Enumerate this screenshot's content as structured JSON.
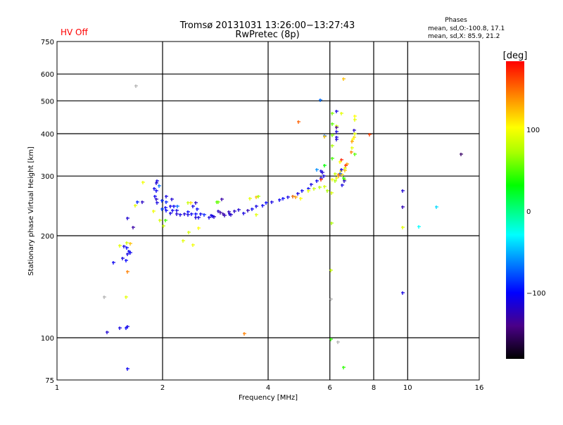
{
  "status": {
    "hv_label": "HV Off",
    "hv_color": "#ff0000"
  },
  "phases_box": {
    "title": "Phases",
    "o_line": "mean, sd,O:-100.8, 17.1",
    "x_line": "mean, sd,X:  85.9, 21.2"
  },
  "chart_data": {
    "type": "scatter",
    "title": "Tromsø 20131031 13:26:00−13:27:43",
    "subtitle": "RwPretec (8p)",
    "xlabel": "Frequency [MHz]",
    "ylabel": "Stationary phase Virtual Height [km]",
    "xscale": "log",
    "yscale": "log",
    "xlim": [
      1,
      16
    ],
    "ylim": [
      75,
      750
    ],
    "xticks": [
      1,
      2,
      4,
      6,
      8,
      10,
      16
    ],
    "xtick_labels": [
      "1",
      "2",
      "4",
      "6",
      "8",
      "10",
      "16"
    ],
    "xgrid": [
      2,
      4,
      6,
      8,
      10
    ],
    "yticks": [
      75,
      100,
      200,
      300,
      400,
      500,
      600,
      750
    ],
    "ytick_labels": [
      "75",
      "100",
      "200",
      "300",
      "400",
      "500",
      "600",
      "750"
    ],
    "ygrid": [
      100,
      200,
      300,
      400,
      500,
      600
    ],
    "grid": true,
    "colorbar": {
      "label": "[deg]",
      "range": [
        -180,
        180
      ],
      "ticks": [
        100,
        0,
        -100
      ],
      "tick_labels": [
        "100",
        "0",
        "−100"
      ],
      "stops": [
        {
          "v": -180,
          "c": "#000000"
        },
        {
          "v": -140,
          "c": "#4a0088"
        },
        {
          "v": -100,
          "c": "#0000ff"
        },
        {
          "v": -60,
          "c": "#0090ff"
        },
        {
          "v": -30,
          "c": "#00ffff"
        },
        {
          "v": 0,
          "c": "#00ff80"
        },
        {
          "v": 30,
          "c": "#00ff00"
        },
        {
          "v": 70,
          "c": "#aaff00"
        },
        {
          "v": 100,
          "c": "#ffff00"
        },
        {
          "v": 140,
          "c": "#ff8000"
        },
        {
          "v": 180,
          "c": "#ff0000"
        }
      ]
    },
    "points_columns": [
      "frequency_mhz",
      "height_km",
      "phase_deg"
    ],
    "points": [
      [
        1.6,
        180,
        -105
      ],
      [
        1.55,
        186,
        -110
      ],
      [
        1.51,
        187,
        90
      ],
      [
        1.58,
        191,
        85
      ],
      [
        1.62,
        190,
        120
      ],
      [
        1.58,
        184,
        -100
      ],
      [
        1.59,
        177,
        -110
      ],
      [
        1.62,
        178,
        -105
      ],
      [
        1.54,
        172,
        -110
      ],
      [
        1.57,
        169,
        -100
      ],
      [
        1.45,
        167,
        -105
      ],
      [
        1.59,
        157,
        140
      ],
      [
        1.36,
        132,
        null
      ],
      [
        1.57,
        132,
        90
      ],
      [
        1.51,
        107,
        -110
      ],
      [
        1.57,
        107,
        -100
      ],
      [
        1.59,
        108,
        -110
      ],
      [
        1.39,
        104,
        -115
      ],
      [
        1.59,
        81,
        -105
      ],
      [
        1.68,
        554,
        null
      ],
      [
        1.76,
        288,
        95
      ],
      [
        1.93,
        290,
        -110
      ],
      [
        1.92,
        286,
        -115
      ],
      [
        1.95,
        281,
        -70
      ],
      [
        1.89,
        276,
        -105
      ],
      [
        1.92,
        271,
        -105
      ],
      [
        1.9,
        262,
        -105
      ],
      [
        1.92,
        257,
        -120
      ],
      [
        1.69,
        251,
        -90
      ],
      [
        1.75,
        252,
        -120
      ],
      [
        1.67,
        246,
        90
      ],
      [
        1.93,
        250,
        -110
      ],
      [
        1.99,
        254,
        -90
      ],
      [
        2.05,
        251,
        -90
      ],
      [
        2.05,
        261,
        -110
      ],
      [
        2.12,
        256,
        -115
      ],
      [
        1.88,
        236,
        95
      ],
      [
        1.99,
        240,
        -80
      ],
      [
        2.04,
        242,
        -100
      ],
      [
        2.1,
        245,
        -110
      ],
      [
        2.15,
        244,
        -100
      ],
      [
        2.2,
        244,
        -70
      ],
      [
        2.05,
        237,
        -100
      ],
      [
        2.1,
        233,
        -110
      ],
      [
        2.13,
        238,
        -105
      ],
      [
        2.19,
        238,
        -110
      ],
      [
        2.19,
        232,
        -115
      ],
      [
        2.25,
        231,
        -110
      ],
      [
        2.31,
        232,
        -115
      ],
      [
        2.36,
        231,
        -110
      ],
      [
        2.36,
        235,
        -100
      ],
      [
        2.42,
        232,
        -105
      ],
      [
        2.48,
        232,
        -100
      ],
      [
        2.48,
        227,
        -115
      ],
      [
        2.53,
        227,
        -110
      ],
      [
        2.57,
        232,
        -105
      ],
      [
        2.63,
        231,
        -90
      ],
      [
        2.71,
        227,
        -110
      ],
      [
        2.78,
        229,
        -105
      ],
      [
        2.88,
        236,
        -120
      ],
      [
        2.97,
        232,
        -130
      ],
      [
        3.09,
        235,
        -125
      ],
      [
        3.13,
        231,
        -120
      ],
      [
        2.36,
        250,
        80
      ],
      [
        2.41,
        250,
        110
      ],
      [
        2.49,
        250,
        -120
      ],
      [
        2.44,
        245,
        -110
      ],
      [
        2.51,
        240,
        -100
      ],
      [
        2.88,
        251,
        60
      ],
      [
        2.95,
        256,
        -130
      ],
      [
        2.04,
        222,
        45
      ],
      [
        1.96,
        222,
        85
      ],
      [
        2.01,
        214,
        80
      ],
      [
        2.53,
        211,
        100
      ],
      [
        2.37,
        205,
        85
      ],
      [
        2.29,
        193,
        90
      ],
      [
        2.44,
        188,
        95
      ],
      [
        1.59,
        225,
        -115
      ],
      [
        1.65,
        212,
        -130
      ],
      [
        2.75,
        230,
        -110
      ],
      [
        2.8,
        228,
        -120
      ],
      [
        2.92,
        234,
        -130
      ],
      [
        3.0,
        230,
        -125
      ],
      [
        3.1,
        232,
        -115
      ],
      [
        3.2,
        236,
        -120
      ],
      [
        3.3,
        239,
        -115
      ],
      [
        3.4,
        233,
        -110
      ],
      [
        3.5,
        237,
        -125
      ],
      [
        3.6,
        240,
        -105
      ],
      [
        3.7,
        244,
        -110
      ],
      [
        3.85,
        246,
        -105
      ],
      [
        3.95,
        250,
        -100
      ],
      [
        4.1,
        252,
        -110
      ],
      [
        4.3,
        255,
        -105
      ],
      [
        4.4,
        258,
        -100
      ],
      [
        4.55,
        260,
        -110
      ],
      [
        4.7,
        262,
        -105
      ],
      [
        4.85,
        266,
        -110
      ],
      [
        5.0,
        272,
        -105
      ],
      [
        5.2,
        276,
        -100
      ],
      [
        5.3,
        283,
        -110
      ],
      [
        5.5,
        290,
        -105
      ],
      [
        5.65,
        296,
        -100
      ],
      [
        5.7,
        307,
        -115
      ],
      [
        5.65,
        310,
        -110
      ],
      [
        5.75,
        300,
        -110
      ],
      [
        3.55,
        258,
        90
      ],
      [
        3.7,
        260,
        120
      ],
      [
        3.75,
        262,
        70
      ],
      [
        2.86,
        251,
        50
      ],
      [
        3.7,
        231,
        90
      ],
      [
        4.8,
        260,
        130
      ],
      [
        4.95,
        258,
        100
      ],
      [
        4.7,
        262,
        140
      ],
      [
        5.2,
        272,
        90
      ],
      [
        5.4,
        275,
        80
      ],
      [
        5.6,
        278,
        75
      ],
      [
        5.8,
        280,
        85
      ],
      [
        5.9,
        272,
        70
      ],
      [
        6.05,
        268,
        85
      ],
      [
        5.65,
        293,
        170
      ],
      [
        6.05,
        218,
        70
      ],
      [
        6.2,
        305,
        80
      ],
      [
        6.35,
        300,
        130
      ],
      [
        6.45,
        310,
        100
      ],
      [
        6.6,
        293,
        60
      ],
      [
        6.5,
        282,
        -110
      ],
      [
        6.56,
        581,
        120
      ],
      [
        5.64,
        503,
        -70
      ],
      [
        4.88,
        433,
        150
      ],
      [
        6.25,
        467,
        -110
      ],
      [
        6.1,
        460,
        60
      ],
      [
        6.47,
        460,
        90
      ],
      [
        7.07,
        450,
        100
      ],
      [
        7.07,
        440,
        90
      ],
      [
        6.1,
        428,
        50
      ],
      [
        6.25,
        421,
        80
      ],
      [
        6.25,
        417,
        -140
      ],
      [
        6.25,
        406,
        -110
      ],
      [
        7.04,
        410,
        -120
      ],
      [
        7.07,
        400,
        90
      ],
      [
        7.78,
        398,
        160
      ],
      [
        5.8,
        394,
        -70
      ],
      [
        5.8,
        392,
        120
      ],
      [
        6.1,
        396,
        60
      ],
      [
        6.25,
        390,
        -110
      ],
      [
        6.25,
        385,
        -115
      ],
      [
        7.04,
        390,
        110
      ],
      [
        6.95,
        385,
        100
      ],
      [
        6.93,
        380,
        130
      ],
      [
        6.1,
        369,
        70
      ],
      [
        6.93,
        363,
        90
      ],
      [
        6.9,
        354,
        140
      ],
      [
        7.07,
        348,
        50
      ],
      [
        6.1,
        338,
        45
      ],
      [
        6.47,
        335,
        170
      ],
      [
        6.4,
        330,
        100
      ],
      [
        6.7,
        326,
        130
      ],
      [
        6.65,
        322,
        165
      ],
      [
        6.62,
        316,
        90
      ],
      [
        6.62,
        312,
        120
      ],
      [
        5.8,
        323,
        30
      ],
      [
        5.5,
        314,
        -60
      ],
      [
        6.47,
        314,
        -110
      ],
      [
        6.5,
        303,
        110
      ],
      [
        6.4,
        305,
        -80
      ],
      [
        6.35,
        303,
        140
      ],
      [
        6.25,
        296,
        90
      ],
      [
        6.1,
        293,
        100
      ],
      [
        6.2,
        290,
        70
      ],
      [
        6.56,
        296,
        40
      ],
      [
        6.58,
        290,
        -120
      ],
      [
        9.67,
        271,
        -115
      ],
      [
        9.67,
        243,
        -125
      ],
      [
        9.67,
        212,
        90
      ],
      [
        9.67,
        136,
        -110
      ],
      [
        10.75,
        213,
        -30
      ],
      [
        12.07,
        243,
        -40
      ],
      [
        14.2,
        348,
        -150
      ],
      [
        6.03,
        158,
        80
      ],
      [
        6.03,
        130,
        null
      ],
      [
        6.03,
        99,
        40
      ],
      [
        6.32,
        97,
        null
      ],
      [
        6.56,
        82,
        40
      ],
      [
        3.42,
        103,
        140
      ]
    ]
  }
}
